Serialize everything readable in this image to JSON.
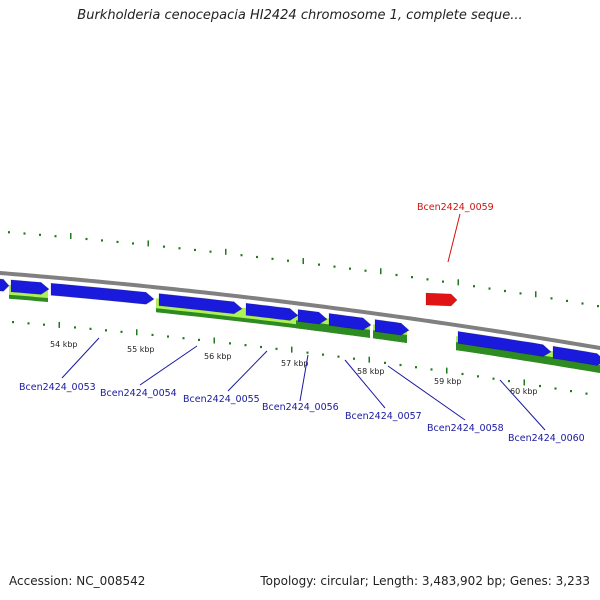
{
  "title": "Burkholderia cenocepacia HI2424 chromosome 1, complete seque...",
  "footer": {
    "accession": "Accession: NC_008542",
    "summary": "Topology: circular; Length: 3,483,902 bp; Genes: 3,233"
  },
  "colors": {
    "forward_gene": "#1a1adc",
    "highlight_gene": "#e01414",
    "light_track": "#aef05a",
    "dark_track": "#2e8b22",
    "backbone": "#808080",
    "label_blue": "#1a1aa0",
    "label_red": "#d01010",
    "tick_green": "#1f7a1f"
  },
  "scale_labels": [
    "54 kbp",
    "55 kbp",
    "56 kbp",
    "57 kbp",
    "58 kbp",
    "59 kbp",
    "60 kbp"
  ],
  "gene_labels": [
    {
      "text": "Bcen2424_0053",
      "color": "blue"
    },
    {
      "text": "Bcen2424_0054",
      "color": "blue"
    },
    {
      "text": "Bcen2424_0055",
      "color": "blue"
    },
    {
      "text": "Bcen2424_0056",
      "color": "blue"
    },
    {
      "text": "Bcen2424_0057",
      "color": "blue"
    },
    {
      "text": "Bcen2424_0058",
      "color": "blue"
    },
    {
      "text": "Bcen2424_0060",
      "color": "blue"
    },
    {
      "text": "Bcen2424_0059",
      "color": "red"
    }
  ]
}
